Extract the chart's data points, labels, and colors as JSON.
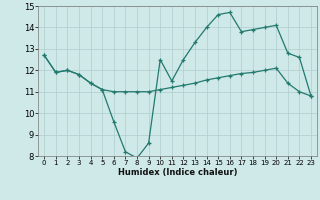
{
  "xlabel": "Humidex (Indice chaleur)",
  "background_color": "#cfe8e8",
  "grid_color": "#b0cccc",
  "line_color": "#217a6e",
  "xlim": [
    -0.5,
    23.5
  ],
  "ylim": [
    8,
    15
  ],
  "xticks": [
    0,
    1,
    2,
    3,
    4,
    5,
    6,
    7,
    8,
    9,
    10,
    11,
    12,
    13,
    14,
    15,
    16,
    17,
    18,
    19,
    20,
    21,
    22,
    23
  ],
  "yticks": [
    8,
    9,
    10,
    11,
    12,
    13,
    14,
    15
  ],
  "line1_x": [
    0,
    1,
    2,
    3,
    4,
    5,
    6,
    7,
    8,
    9,
    10,
    11,
    12,
    13,
    14,
    15,
    16,
    17,
    18,
    19,
    20,
    21,
    22,
    23
  ],
  "line1_y": [
    12.7,
    11.9,
    12.0,
    11.8,
    11.4,
    11.1,
    9.6,
    8.2,
    7.9,
    8.6,
    12.5,
    11.5,
    12.5,
    13.3,
    14.0,
    14.6,
    14.7,
    13.8,
    13.9,
    14.0,
    14.1,
    12.8,
    12.6,
    10.8
  ],
  "line2_x": [
    0,
    1,
    2,
    3,
    4,
    5,
    6,
    7,
    8,
    9,
    10,
    11,
    12,
    13,
    14,
    15,
    16,
    17,
    18,
    19,
    20,
    21,
    22,
    23
  ],
  "line2_y": [
    12.7,
    11.9,
    12.0,
    11.8,
    11.4,
    11.1,
    11.0,
    11.0,
    11.0,
    11.0,
    11.1,
    11.2,
    11.3,
    11.4,
    11.55,
    11.65,
    11.75,
    11.85,
    11.9,
    12.0,
    12.1,
    11.4,
    11.0,
    10.8
  ]
}
